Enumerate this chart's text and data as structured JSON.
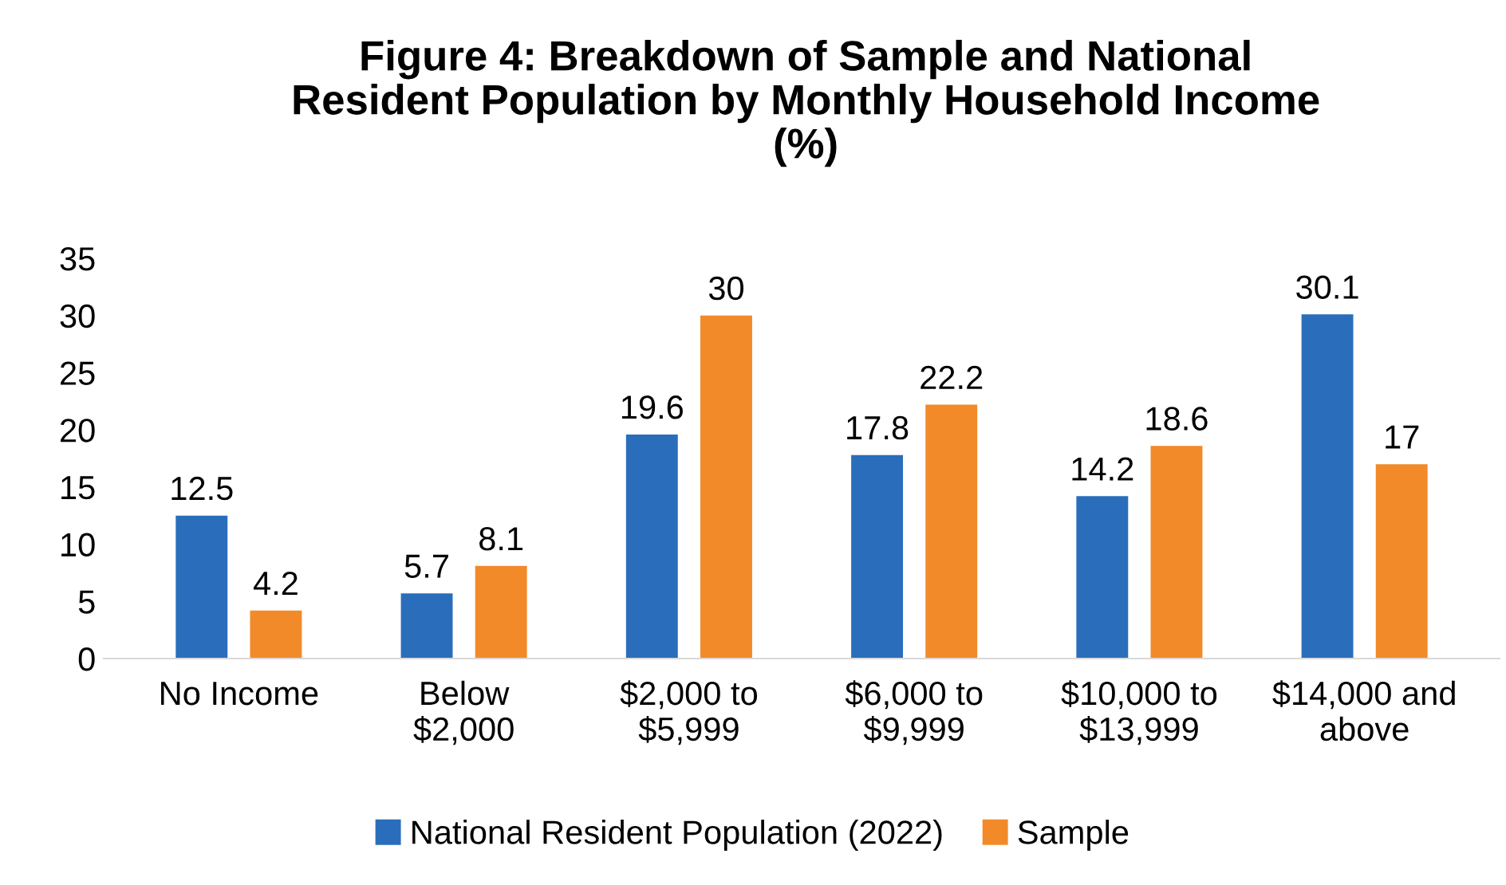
{
  "chart_data": {
    "type": "bar",
    "title": "Figure 4: Breakdown of Sample and National\nResident Population by Monthly Household Income\n(%)",
    "categories": [
      "No Income",
      "Below\n$2,000",
      "$2,000 to\n$5,999",
      "$6,000 to\n$9,999",
      "$10,000 to\n$13,999",
      "$14,000 and\nabove"
    ],
    "series": [
      {
        "name": "National Resident Population (2022)",
        "color": "#2a6ebb",
        "values": [
          12.5,
          5.7,
          19.6,
          17.8,
          14.2,
          30.1
        ]
      },
      {
        "name": "Sample",
        "color": "#f28a2a",
        "values": [
          4.2,
          8.1,
          30,
          22.2,
          18.6,
          17
        ]
      }
    ],
    "ylim": [
      0,
      35
    ],
    "yticks": [
      0,
      5,
      10,
      15,
      20,
      25,
      30,
      35
    ],
    "grid": false,
    "legend": "bottom",
    "data_labels": true
  }
}
